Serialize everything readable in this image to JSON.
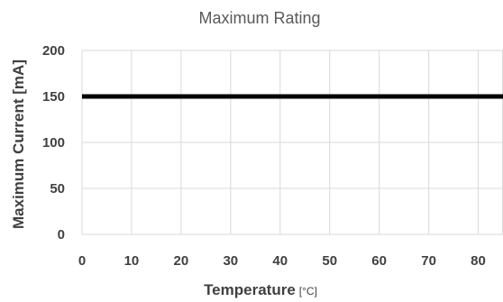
{
  "chart_data": {
    "type": "line",
    "title": "Maximum Rating",
    "xlabel": "Temperature",
    "xlabel_unit": "[°C]",
    "ylabel": "Maximum Current [mA]",
    "x_ticks": [
      "0",
      "10",
      "20",
      "30",
      "40",
      "50",
      "60",
      "70",
      "80"
    ],
    "y_ticks": [
      "0",
      "50",
      "100",
      "150",
      "200"
    ],
    "xlim": [
      0,
      85
    ],
    "ylim": [
      0,
      200
    ],
    "grid": true,
    "series": [
      {
        "x": [
          0,
          85
        ],
        "y": [
          150,
          150
        ]
      }
    ],
    "colors": {
      "line": "#000000",
      "grid": "#d9d9d9",
      "text": "#404040",
      "title": "#595959"
    }
  }
}
